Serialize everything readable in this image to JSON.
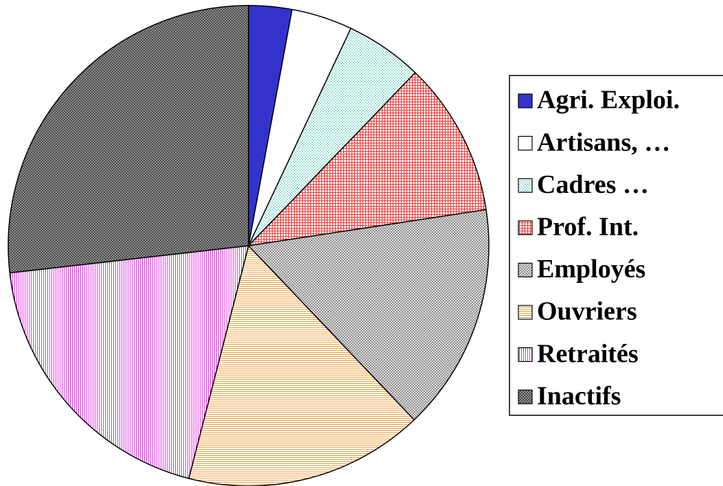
{
  "chart_data": {
    "type": "pie",
    "categories": [
      "Agri. Exploi.",
      "Artisans, …",
      "Cadres …",
      "Prof. Int.",
      "Employés",
      "Ouvriers",
      "Retraités",
      "Inactifs"
    ],
    "values": [
      2.9,
      4.1,
      5.2,
      10.4,
      15.3,
      16.1,
      19.2,
      26.8
    ],
    "colors": [
      "#3333cc",
      "#ffffff",
      "#66ccbb",
      "#ee3333",
      "#888888",
      "#ee9933",
      "#dd33dd",
      "#444444"
    ],
    "patterns": [
      "solid",
      "solid",
      "dots",
      "grid",
      "crosshatch",
      "hlines",
      "vlines",
      "diagonal"
    ],
    "legend": "right"
  }
}
